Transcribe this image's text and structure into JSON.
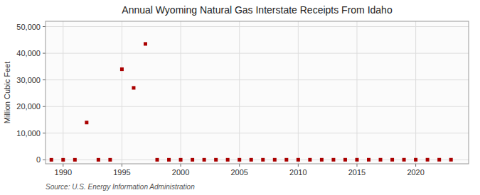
{
  "chart_data": {
    "type": "scatter",
    "title": "Annual Wyoming Natural Gas Interstate Receipts From Idaho",
    "ylabel": "Million Cubic Feet",
    "annotations": [
      "Source: U.S. Energy Information Administration"
    ],
    "color": "#aa0000",
    "marker": "square",
    "grid": true,
    "x": [
      1989,
      1990,
      1991,
      1992,
      1993,
      1994,
      1995,
      1996,
      1997,
      1998,
      1999,
      2000,
      2001,
      2002,
      2003,
      2004,
      2005,
      2006,
      2007,
      2008,
      2009,
      2010,
      2011,
      2012,
      2013,
      2014,
      2015,
      2016,
      2017,
      2018,
      2019,
      2020,
      2021,
      2022,
      2023
    ],
    "values": [
      0,
      1,
      2,
      14000,
      3,
      4,
      34000,
      27000,
      43500,
      5,
      6,
      7,
      8,
      9,
      10,
      11,
      12,
      13,
      14,
      15,
      16,
      17,
      18,
      19,
      20,
      21,
      22,
      23,
      24,
      25,
      26,
      27,
      28,
      29,
      30
    ],
    "xlim": [
      1988.5,
      2024.5
    ],
    "ylim": [
      -1500,
      52000
    ],
    "xticks": [
      1990,
      1995,
      2000,
      2005,
      2010,
      2015,
      2020
    ],
    "yticks": [
      0,
      {
        "value": 10000,
        "label": "10,000"
      },
      {
        "value": 20000,
        "label": "20,000"
      },
      {
        "value": 30000,
        "label": "30,000"
      },
      {
        "value": 40000,
        "label": "40,000"
      },
      {
        "value": 50000,
        "label": "50,000"
      }
    ]
  }
}
